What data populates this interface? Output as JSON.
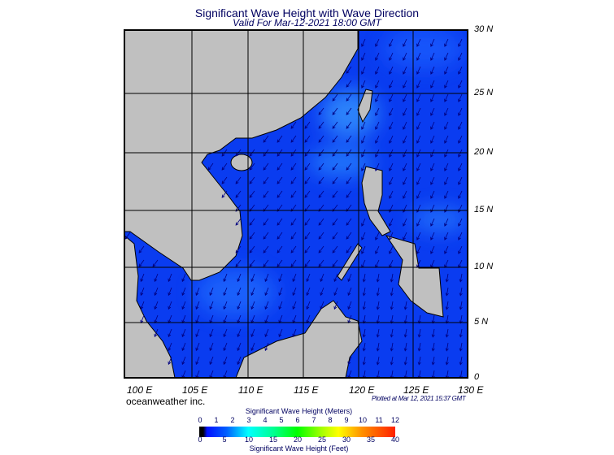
{
  "title": "Significant Wave Height with Wave Direction",
  "subtitle": "Valid For Mar-12-2021 18:00 GMT",
  "map": {
    "ocean_color": "#0a3cf0",
    "land_color": "#c0c0c0",
    "arrow_color": "#000080",
    "lat_labels": [
      "30 N",
      "25 N",
      "20 N",
      "15 N",
      "10 N",
      "5 N",
      "0"
    ],
    "lon_labels": [
      "100 E",
      "105 E",
      "110 E",
      "115 E",
      "120 E",
      "125 E",
      "130 E"
    ]
  },
  "brand": "oceanweather inc.",
  "plotted": "Plotted at Mar 12, 2021 15:37 GMT",
  "legend": {
    "meters_title": "Significant Wave Height (Meters)",
    "meters_ticks": [
      "0",
      "1",
      "2",
      "3",
      "4",
      "5",
      "6",
      "7",
      "8",
      "9",
      "10",
      "11",
      "12"
    ],
    "feet_title": "Significant Wave Height (Feet)",
    "feet_ticks": [
      "0",
      "5",
      "10",
      "15",
      "20",
      "25",
      "30",
      "35",
      "40"
    ]
  }
}
